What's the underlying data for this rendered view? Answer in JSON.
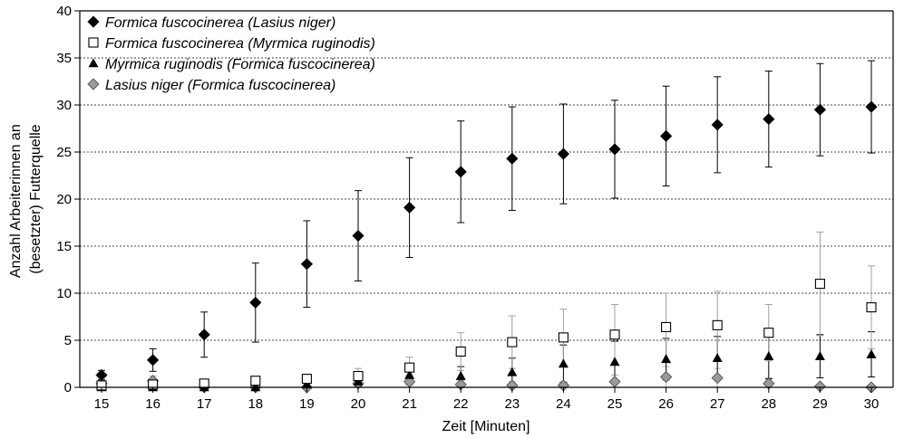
{
  "chart_data": {
    "type": "scatter",
    "xlabel": "Zeit [Minuten]",
    "ylabel": [
      "Anzahl Arbeiterinnen an",
      "(besetzter) Futterquelle"
    ],
    "x": [
      15,
      16,
      17,
      18,
      19,
      20,
      21,
      22,
      23,
      24,
      25,
      26,
      27,
      28,
      29,
      30
    ],
    "xlim": [
      15,
      30
    ],
    "ylim": [
      0,
      40
    ],
    "yticks": [
      0,
      5,
      10,
      15,
      20,
      25,
      30,
      35,
      40
    ],
    "grid": "horizontal dotted",
    "legend_position": "top-left",
    "series": [
      {
        "name": "Formica fuscocinerea (Lasius niger)",
        "marker": "diamond-filled",
        "color": "#000000",
        "values": [
          1.3,
          2.9,
          5.6,
          9.0,
          13.1,
          16.1,
          19.1,
          22.9,
          24.3,
          24.8,
          25.3,
          26.7,
          27.9,
          28.5,
          29.5,
          29.8
        ],
        "err": [
          0.5,
          1.2,
          2.4,
          4.2,
          4.6,
          4.8,
          5.3,
          5.4,
          5.5,
          5.3,
          5.2,
          5.3,
          5.1,
          5.1,
          4.9,
          4.9
        ]
      },
      {
        "name": "Formica fuscocinerea (Myrmica ruginodis)",
        "marker": "square-open",
        "color": "#000000",
        "values": [
          0.2,
          0.3,
          0.4,
          0.7,
          0.9,
          1.2,
          2.1,
          3.8,
          4.8,
          5.3,
          5.6,
          6.4,
          6.6,
          5.8,
          11.0,
          8.5
        ],
        "err": [
          0.3,
          0.3,
          0.3,
          0.4,
          0.5,
          0.8,
          1.1,
          2.0,
          2.8,
          3.0,
          3.2,
          3.6,
          3.6,
          3.0,
          5.5,
          4.4
        ]
      },
      {
        "name": "Myrmica ruginodis (Formica fuscocinerea)",
        "marker": "triangle-filled",
        "color": "#000000",
        "values": [
          0.0,
          0.0,
          0.0,
          0.0,
          0.3,
          0.6,
          1.3,
          1.2,
          1.6,
          2.5,
          2.7,
          3.0,
          3.1,
          3.3,
          3.3,
          3.5
        ],
        "err": [
          0.0,
          0.0,
          0.0,
          0.0,
          0.3,
          0.5,
          1.0,
          1.0,
          1.5,
          2.0,
          2.2,
          2.2,
          2.3,
          2.4,
          2.3,
          2.4
        ]
      },
      {
        "name": "Lasius niger (Formica fuscocinerea)",
        "marker": "diamond-gray",
        "color": "#a0a0a0",
        "values": [
          0.4,
          0.7,
          0.0,
          0.0,
          0.0,
          0.4,
          0.6,
          0.3,
          0.2,
          0.2,
          0.6,
          1.1,
          1.0,
          0.4,
          0.1,
          0.0
        ],
        "err": [
          0.3,
          0.5,
          0.0,
          0.0,
          0.0,
          0.5,
          0.7,
          0.4,
          0.4,
          0.4,
          0.7,
          1.1,
          1.0,
          0.6,
          0.2,
          0.0
        ]
      }
    ]
  }
}
